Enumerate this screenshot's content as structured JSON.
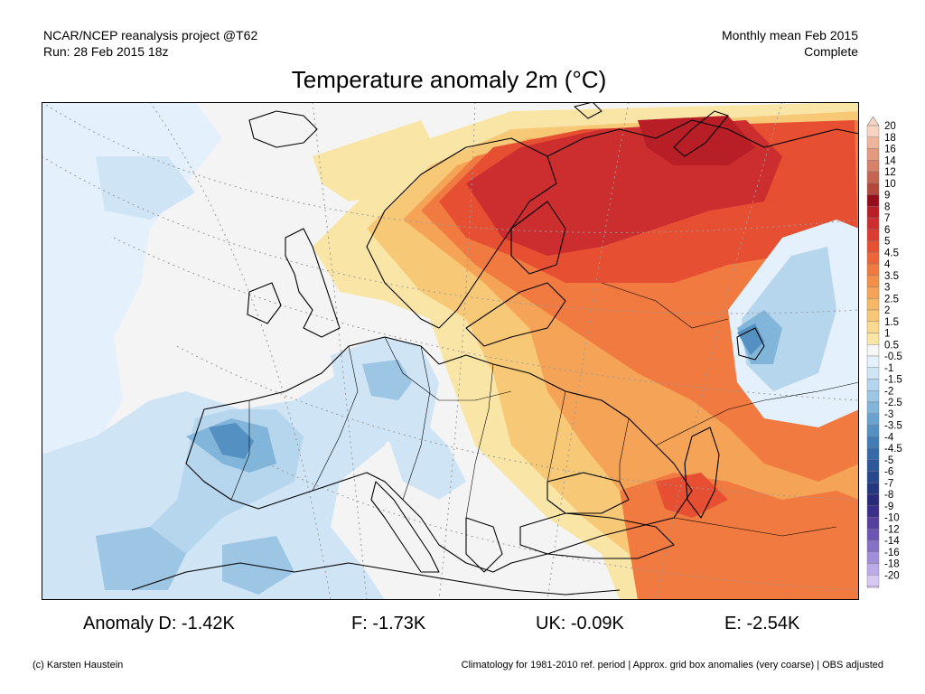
{
  "header": {
    "project": "NCAR/NCEP reanalysis project @T62",
    "run": "Run: 28 Feb 2015 18z",
    "period": "Monthly mean Feb 2015",
    "status": "Complete"
  },
  "title": "Temperature anomaly 2m (°C)",
  "colorbar": {
    "labels": [
      "20",
      "18",
      "16",
      "14",
      "12",
      "10",
      "9",
      "8",
      "7",
      "6",
      "5",
      "4.5",
      "4",
      "3.5",
      "3",
      "2.5",
      "2",
      "1.5",
      "1",
      "0.5",
      "-0.5",
      "-1",
      "-1.5",
      "-2",
      "-2.5",
      "-3",
      "-3.5",
      "-4",
      "-4.5",
      "-5",
      "-6",
      "-7",
      "-8",
      "-9",
      "-10",
      "-12",
      "-14",
      "-16",
      "-18",
      "-20"
    ],
    "colors": [
      "#f7d3c0",
      "#efb59c",
      "#e49a7e",
      "#d7806a",
      "#c66452",
      "#b3493c",
      "#960e1b",
      "#b81e25",
      "#cc2d2e",
      "#dc3b2f",
      "#e64f32",
      "#ec6437",
      "#f07a3f",
      "#f38f49",
      "#f5a457",
      "#f6b866",
      "#f7c977",
      "#f8d98d",
      "#f9e6a7",
      "#f6f6f6",
      "#e4f0fb",
      "#cfe4f5",
      "#b6d6ee",
      "#9cc6e4",
      "#82b5da",
      "#6aa3cf",
      "#5490c2",
      "#417cb5",
      "#3569a8",
      "#2d579b",
      "#28478d",
      "#25387f",
      "#2a2a7a",
      "#3a2f8a",
      "#55409e",
      "#6c55b3",
      "#8770c7",
      "#a28dd8",
      "#bcaae6",
      "#d7c8f2"
    ]
  },
  "stats": {
    "d": "Anomaly D: -1.42K",
    "f": "F: -1.73K",
    "uk": "UK: -0.09K",
    "e": "E: -2.54K"
  },
  "footer": {
    "credit": "(c) Karsten Haustein",
    "note": "Climatology for 1981-2010 ref. period | Approx. grid box anomalies (very coarse) | OBS adjusted"
  }
}
